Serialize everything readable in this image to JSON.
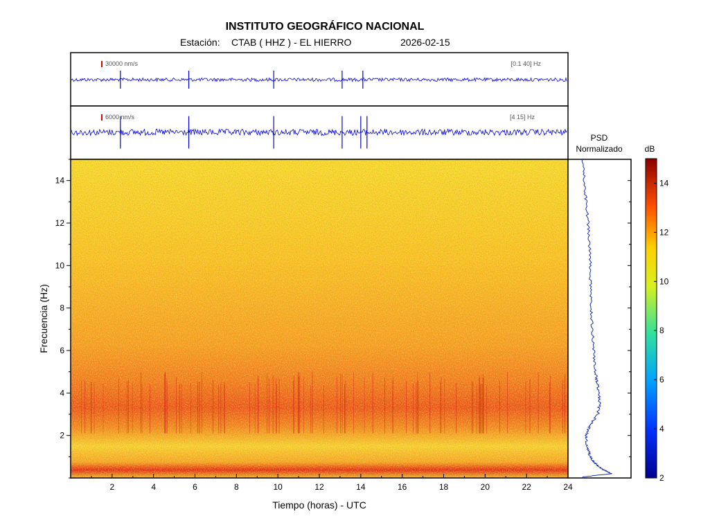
{
  "header": {
    "title": "INSTITUTO GEOGRÁFICO NACIONAL",
    "station_prefix": "Estación:",
    "station": "CTAB ( HHZ ) - EL HIERRO",
    "date": "2026-02-15"
  },
  "colors": {
    "trace": "#0000dd",
    "scale_marker": "#e00000",
    "psd_line": "#1a2fb0"
  },
  "chart_data": [
    {
      "type": "line",
      "name": "seismogram-broadband",
      "scale_label": "30000 nm/s",
      "band_label": "[0.1 40] Hz",
      "xlim": [
        0,
        24
      ],
      "spike_hours": [
        2.4,
        5.7,
        9.8,
        13.1,
        14.1
      ]
    },
    {
      "type": "line",
      "name": "seismogram-filtered",
      "scale_label": "6000 nm/s",
      "band_label": "[4 15] Hz",
      "xlim": [
        0,
        24
      ],
      "spike_hours": [
        2.4,
        5.7,
        9.8,
        13.1,
        14.0,
        14.3
      ]
    },
    {
      "type": "heatmap",
      "name": "spectrogram",
      "xlabel": "Tiempo (horas) - UTC",
      "ylabel": "Frecuencia  (Hz)",
      "xlim": [
        0,
        24
      ],
      "ylim": [
        0,
        15
      ],
      "xticks": [
        2,
        4,
        6,
        8,
        10,
        12,
        14,
        16,
        18,
        20,
        22,
        24
      ],
      "yticks": [
        2,
        4,
        6,
        8,
        10,
        12,
        14
      ],
      "colorbar": {
        "label": "dB",
        "range": [
          2,
          15
        ],
        "ticks": [
          2,
          4,
          6,
          8,
          10,
          12,
          14
        ]
      },
      "dominant_band_hz": [
        2.5,
        5.0
      ],
      "low_freq_peak_hz": 0.2
    },
    {
      "type": "line",
      "name": "psd",
      "title_line1": "PSD",
      "title_line2": "Normalizado",
      "ylim": [
        0,
        15
      ],
      "profile": [
        {
          "f": 0.05,
          "v": 0.02
        },
        {
          "f": 0.2,
          "v": 0.7
        },
        {
          "f": 0.4,
          "v": 0.5
        },
        {
          "f": 0.7,
          "v": 0.3
        },
        {
          "f": 1.0,
          "v": 0.2
        },
        {
          "f": 1.5,
          "v": 0.12
        },
        {
          "f": 2.0,
          "v": 0.1
        },
        {
          "f": 2.5,
          "v": 0.2
        },
        {
          "f": 3.0,
          "v": 0.38
        },
        {
          "f": 3.5,
          "v": 0.42
        },
        {
          "f": 4.0,
          "v": 0.4
        },
        {
          "f": 4.5,
          "v": 0.36
        },
        {
          "f": 5.0,
          "v": 0.32
        },
        {
          "f": 6.0,
          "v": 0.28
        },
        {
          "f": 7.0,
          "v": 0.25
        },
        {
          "f": 8.0,
          "v": 0.22
        },
        {
          "f": 9.0,
          "v": 0.2
        },
        {
          "f": 10.0,
          "v": 0.2
        },
        {
          "f": 11.0,
          "v": 0.18
        },
        {
          "f": 12.0,
          "v": 0.15
        },
        {
          "f": 13.0,
          "v": 0.1
        },
        {
          "f": 14.0,
          "v": 0.06
        },
        {
          "f": 15.0,
          "v": 0.02
        }
      ]
    }
  ]
}
